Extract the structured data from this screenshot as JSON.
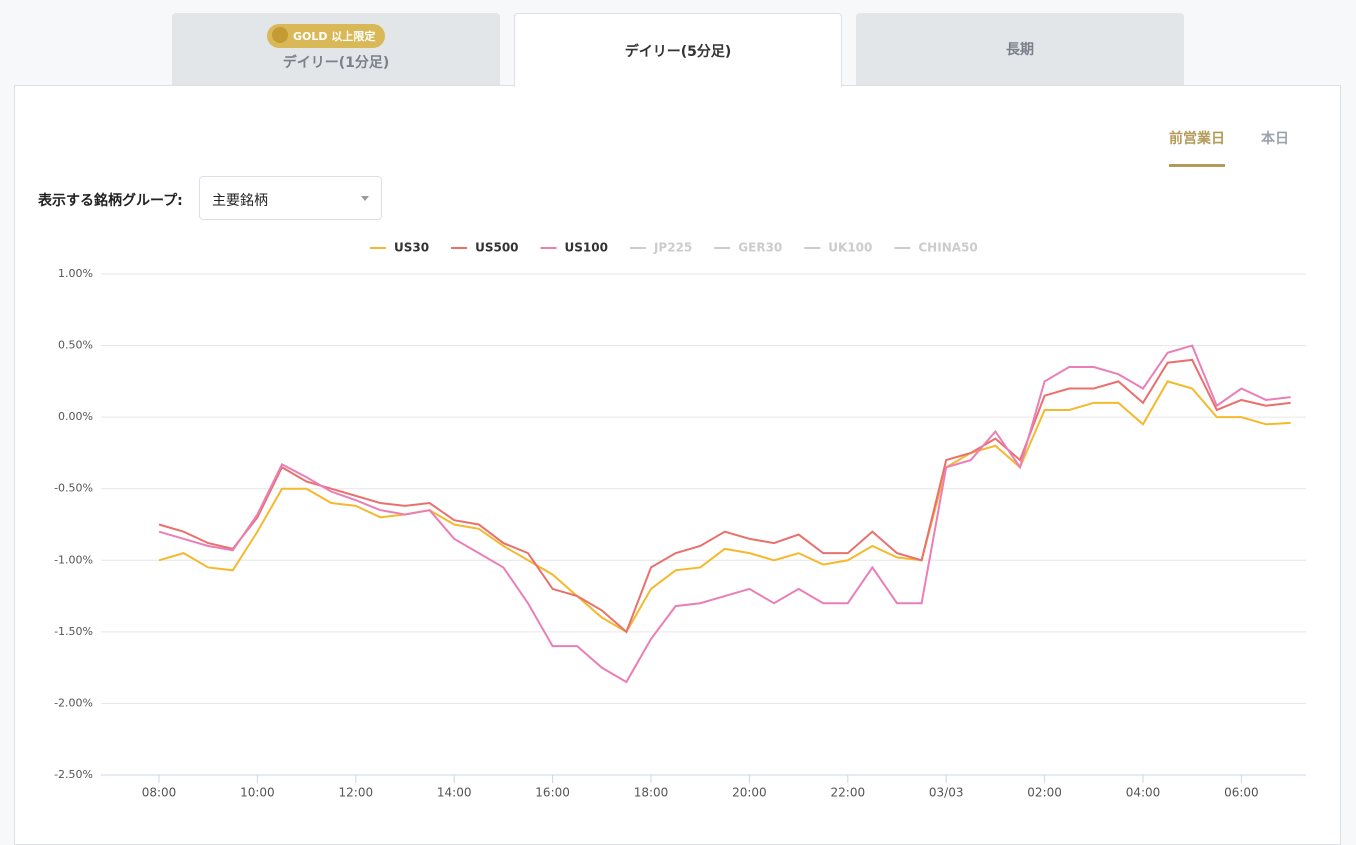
{
  "tabs": {
    "badge": "GOLD 以上限定",
    "items": [
      "デイリー(1分足)",
      "デイリー(5分足)",
      "長期"
    ]
  },
  "toggle": [
    "前営業日",
    "本日"
  ],
  "group_label": "表示する銘柄グループ:",
  "group_select": "主要銘柄",
  "chart_data": {
    "type": "line",
    "categories": [
      "08:00",
      null,
      null,
      null,
      "10:00",
      null,
      null,
      null,
      "12:00",
      null,
      null,
      null,
      "14:00",
      null,
      null,
      null,
      "16:00",
      null,
      null,
      null,
      "18:00",
      null,
      null,
      null,
      "20:00",
      null,
      null,
      null,
      "22:00",
      null,
      null,
      null,
      "03/03",
      null,
      null,
      null,
      "02:00",
      null,
      null,
      null,
      "04:00",
      null,
      null,
      null,
      "06:00",
      null,
      null
    ],
    "series": [
      {
        "name": "US30",
        "color": "#f5b92e",
        "values": [
          -1.0,
          -0.95,
          -1.05,
          -1.07,
          -0.8,
          -0.5,
          -0.5,
          -0.6,
          -0.62,
          -0.7,
          -0.68,
          -0.65,
          -0.75,
          -0.78,
          -0.9,
          -1.0,
          -1.1,
          -1.25,
          -1.4,
          -1.5,
          -1.2,
          -1.07,
          -1.05,
          -0.92,
          -0.95,
          -1.0,
          -0.95,
          -1.03,
          -1.0,
          -0.9,
          -0.98,
          -1.0,
          -0.35,
          -0.25,
          -0.2,
          -0.35,
          0.05,
          0.05,
          0.1,
          0.1,
          -0.05,
          0.25,
          0.2,
          0.0,
          0.0,
          -0.05,
          -0.04
        ]
      },
      {
        "name": "US500",
        "color": "#e9706b",
        "values": [
          -0.75,
          -0.8,
          -0.88,
          -0.92,
          -0.7,
          -0.35,
          -0.45,
          -0.5,
          -0.55,
          -0.6,
          -0.62,
          -0.6,
          -0.72,
          -0.75,
          -0.88,
          -0.95,
          -1.2,
          -1.25,
          -1.35,
          -1.5,
          -1.05,
          -0.95,
          -0.9,
          -0.8,
          -0.85,
          -0.88,
          -0.82,
          -0.95,
          -0.95,
          -0.8,
          -0.95,
          -1.0,
          -0.3,
          -0.25,
          -0.15,
          -0.3,
          0.15,
          0.2,
          0.2,
          0.25,
          0.1,
          0.38,
          0.4,
          0.05,
          0.12,
          0.08,
          0.1
        ]
      },
      {
        "name": "US100",
        "color": "#ea7fb8",
        "values": [
          -0.8,
          -0.85,
          -0.9,
          -0.93,
          -0.68,
          -0.33,
          -0.42,
          -0.52,
          -0.58,
          -0.65,
          -0.68,
          -0.65,
          -0.85,
          -0.95,
          -1.05,
          -1.3,
          -1.6,
          -1.6,
          -1.75,
          -1.85,
          -1.55,
          -1.32,
          -1.3,
          -1.25,
          -1.2,
          -1.3,
          -1.2,
          -1.3,
          -1.3,
          -1.05,
          -1.3,
          -1.3,
          -0.35,
          -0.3,
          -0.1,
          -0.35,
          0.25,
          0.35,
          0.35,
          0.3,
          0.2,
          0.45,
          0.5,
          0.08,
          0.2,
          0.12,
          0.14
        ]
      }
    ],
    "inactive_series": [
      "JP225",
      "GER30",
      "UK100",
      "CHINA50"
    ],
    "ylim": [
      -2.5,
      1.0
    ],
    "yticks": [
      {
        "value": -2.5,
        "label": "-2.50%"
      },
      {
        "value": -2.0,
        "label": "-2.00%"
      },
      {
        "value": -1.5,
        "label": "-1.50%"
      },
      {
        "value": -1.0,
        "label": "-1.00%"
      },
      {
        "value": -0.5,
        "label": "-0.50%"
      },
      {
        "value": 0,
        "label": "0.00%"
      },
      {
        "value": 0.5,
        "label": "0.50%"
      },
      {
        "value": 1.0,
        "label": "1.00%"
      }
    ],
    "grid": true
  }
}
